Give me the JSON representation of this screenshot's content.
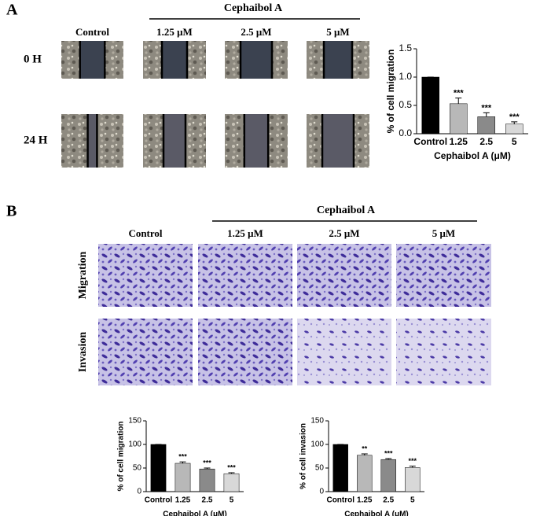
{
  "figure": {
    "panel_a": {
      "label": "A",
      "group_label": "Cephaibol A",
      "columns": [
        "Control",
        "1.25 μM",
        "2.5 μM",
        "5 μM"
      ],
      "rows": [
        "0 H",
        "24 H"
      ]
    },
    "panel_b": {
      "label": "B",
      "group_label": "Cephaibol A",
      "columns": [
        "Control",
        "1.25 μM",
        "2.5 μM",
        "5 μM"
      ],
      "rows": [
        "Migration",
        "Invasion"
      ]
    }
  },
  "chart_data": [
    {
      "type": "bar",
      "ylabel": "% of cell migration",
      "xlabel": "Cephaibol A (μM)",
      "categories": [
        "Control",
        "1.25",
        "2.5",
        "5"
      ],
      "values": [
        1.0,
        0.53,
        0.3,
        0.17
      ],
      "errors": [
        0,
        0.1,
        0.07,
        0.04
      ],
      "annotations": [
        null,
        "***",
        "***",
        "***"
      ],
      "colors": [
        "#000000",
        "#b8b8b8",
        "#8a8a8a",
        "#d8d8d8"
      ],
      "ylim": [
        0,
        1.5
      ],
      "yticks": [
        {
          "value": 0,
          "label": "0.0"
        },
        0.5,
        {
          "value": 1,
          "label": "1.0"
        },
        1.5
      ]
    },
    {
      "type": "bar",
      "ylabel": "% of cell migration",
      "xlabel": "Cephaibol A (μM)",
      "categories": [
        "Control",
        "1.25",
        "2.5",
        "5"
      ],
      "values": [
        100,
        60,
        48,
        38
      ],
      "errors": [
        0,
        3,
        2,
        2
      ],
      "annotations": [
        null,
        "***",
        "***",
        "***"
      ],
      "colors": [
        "#000000",
        "#b8b8b8",
        "#8a8a8a",
        "#d8d8d8"
      ],
      "ylim": [
        0,
        150
      ],
      "yticks": [
        0,
        50,
        100,
        150
      ]
    },
    {
      "type": "bar",
      "ylabel": "% of cell invasion",
      "xlabel": "Cephaibol A (μM)",
      "categories": [
        "Control",
        "1.25",
        "2.5",
        "5"
      ],
      "values": [
        100,
        77,
        68,
        51
      ],
      "errors": [
        0,
        3,
        2,
        3
      ],
      "annotations": [
        null,
        "**",
        "***",
        "***"
      ],
      "colors": [
        "#000000",
        "#b8b8b8",
        "#8a8a8a",
        "#d8d8d8"
      ],
      "ylim": [
        0,
        150
      ],
      "yticks": [
        0,
        50,
        100,
        150
      ]
    }
  ]
}
